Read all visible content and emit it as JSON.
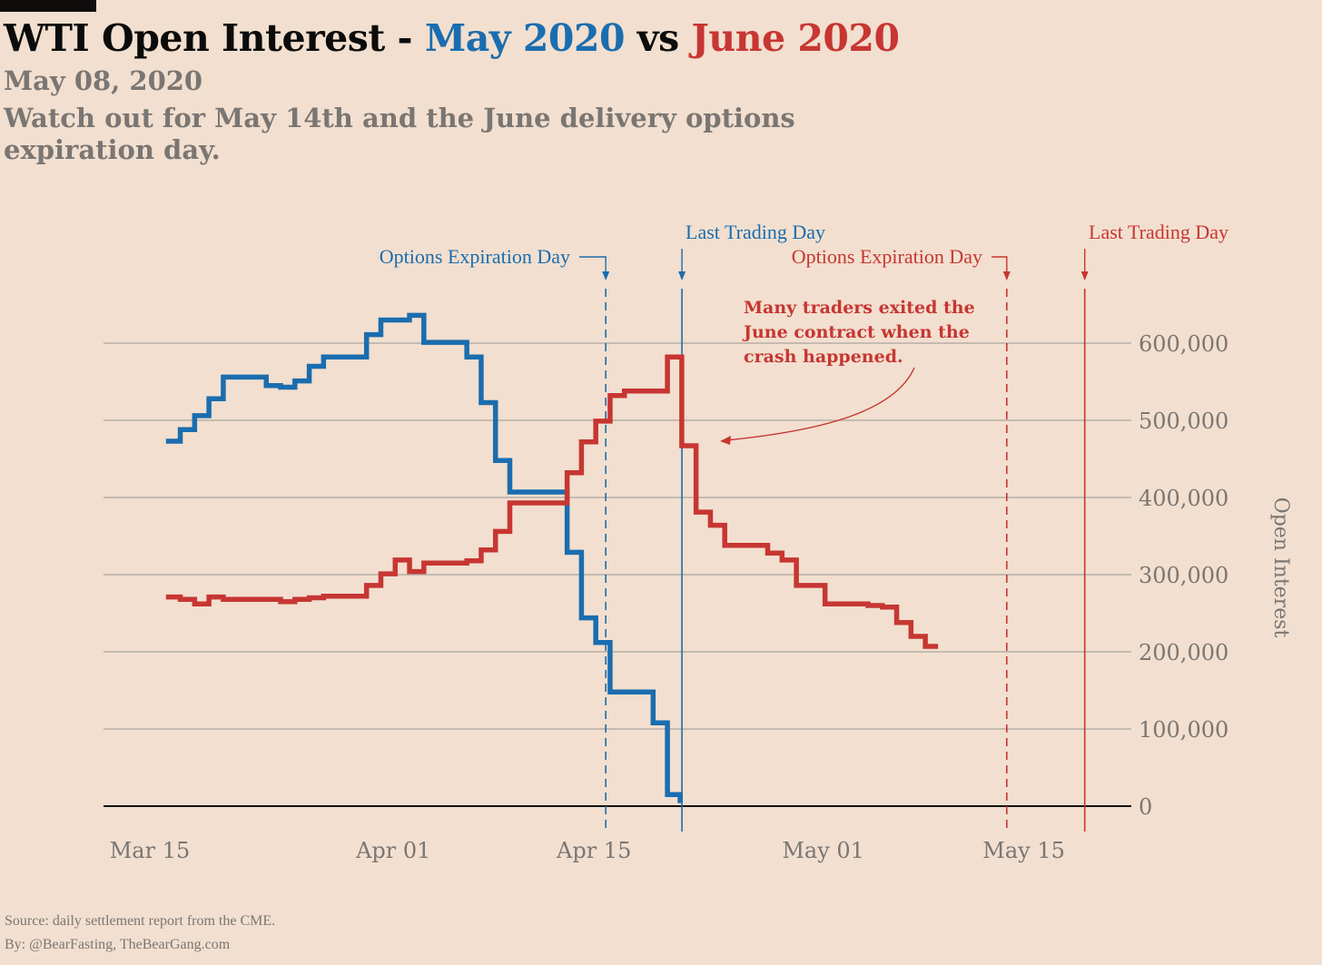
{
  "header": {
    "title_prefix": "WTI Open Interest - ",
    "title_blue": "May 2020",
    "title_mid": " vs ",
    "title_red": "June 2020",
    "date": "May 08, 2020",
    "subtitle": "Watch out for May 14th and the June delivery options expiration day."
  },
  "footer": {
    "source": "Source: daily settlement report from the CME.",
    "by": "By: @BearFasting, TheBearGang.com"
  },
  "colors": {
    "may": "#1a6daf",
    "june": "#c73632",
    "grid": "#aaa49f",
    "axis": "#111111",
    "text": "#7a7673",
    "background": "#f2dfcf"
  },
  "chart_data": {
    "type": "line",
    "step": true,
    "title": "WTI Open Interest - May 2020 vs June 2020",
    "ylabel": "Open Interest",
    "xlabel": "",
    "ylim": [
      0,
      600000
    ],
    "xlim_days_from_mar15": [
      -3,
      40
    ],
    "y_ticks": [
      0,
      100000,
      200000,
      300000,
      400000,
      500000,
      600000
    ],
    "y_tick_labels": [
      "0",
      "100,000",
      "200,000",
      "300,000",
      "400,000",
      "500,000",
      "600,000"
    ],
    "x_ticks": [
      0,
      17,
      31,
      47,
      61
    ],
    "x_tick_labels": [
      "Mar 15",
      "Apr 01",
      "Apr 15",
      "May 01",
      "May 15"
    ],
    "y_axis_side": "right",
    "grid": true,
    "series": [
      {
        "name": "May 2020",
        "color": "#1a6daf",
        "x_days_from_mar15": [
          1,
          2,
          3,
          4,
          5,
          8,
          9,
          10,
          11,
          12,
          15,
          16,
          18,
          19,
          22,
          23,
          24,
          25,
          29,
          30,
          31,
          32,
          35,
          36
        ],
        "values": [
          473000,
          488000,
          506000,
          528000,
          556000,
          545000,
          543000,
          551000,
          570000,
          582000,
          611000,
          630000,
          636000,
          601000,
          582000,
          523000,
          448000,
          407000,
          329000,
          244000,
          212000,
          148000,
          108000,
          15000
        ]
      },
      {
        "name": "June 2020",
        "color": "#c73632",
        "x_days_from_mar15": [
          1,
          2,
          3,
          4,
          5,
          8,
          9,
          10,
          11,
          12,
          15,
          16,
          17,
          18,
          19,
          22,
          23,
          24,
          25,
          29,
          30,
          31,
          32,
          33,
          36,
          37,
          38,
          39,
          40,
          43,
          44,
          45,
          47,
          50,
          51,
          52,
          53,
          54
        ],
        "values": [
          271000,
          268000,
          262000,
          271000,
          268000,
          268000,
          265000,
          268000,
          270000,
          272000,
          286000,
          301000,
          319000,
          304000,
          315000,
          318000,
          332000,
          356000,
          393000,
          432000,
          472000,
          499000,
          532000,
          538000,
          582000,
          467000,
          381000,
          364000,
          338000,
          328000,
          319000,
          286000,
          262000,
          260000,
          258000,
          238000,
          220000,
          207000
        ]
      }
    ],
    "reference_lines": [
      {
        "label": "Options Expiration Day",
        "color": "#1a6daf",
        "style": "dashed",
        "x_day": 31
      },
      {
        "label": "Last Trading Day",
        "color": "#1a6daf",
        "style": "solid",
        "x_day": 36
      },
      {
        "label": "Options Expiration Day",
        "color": "#c73632",
        "style": "dashed",
        "x_day": 60
      },
      {
        "label": "Last Trading Day",
        "color": "#c73632",
        "style": "solid",
        "x_day": 65
      }
    ],
    "annotations": [
      {
        "text_lines": [
          "Many traders exited the",
          "June contract when the",
          "crash happened."
        ],
        "color": "#c73632",
        "points_to": {
          "x_day": 37,
          "value": 472000
        }
      }
    ]
  }
}
